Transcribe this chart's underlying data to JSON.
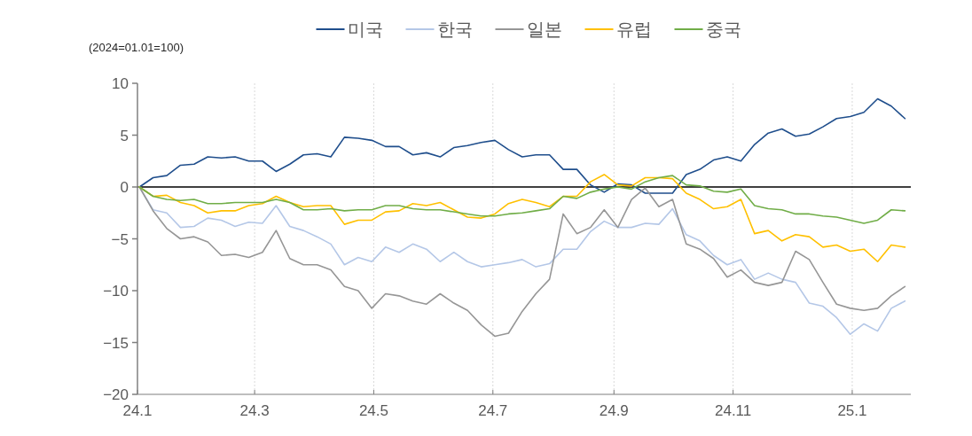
{
  "chart_data": {
    "type": "line",
    "ylabel": "(2024=01.01=100)",
    "x": [
      "2024-01-02",
      "2024-01-09",
      "2024-01-16",
      "2024-01-23",
      "2024-01-30",
      "2024-02-06",
      "2024-02-13",
      "2024-02-20",
      "2024-02-27",
      "2024-03-05",
      "2024-03-12",
      "2024-03-19",
      "2024-03-26",
      "2024-04-02",
      "2024-04-09",
      "2024-04-16",
      "2024-04-23",
      "2024-04-30",
      "2024-05-07",
      "2024-05-14",
      "2024-05-21",
      "2024-05-28",
      "2024-06-04",
      "2024-06-11",
      "2024-06-18",
      "2024-06-25",
      "2024-07-02",
      "2024-07-09",
      "2024-07-16",
      "2024-07-23",
      "2024-07-30",
      "2024-08-06",
      "2024-08-13",
      "2024-08-20",
      "2024-08-27",
      "2024-09-03",
      "2024-09-10",
      "2024-09-17",
      "2024-09-24",
      "2024-10-01",
      "2024-10-08",
      "2024-10-15",
      "2024-10-22",
      "2024-10-29",
      "2024-11-05",
      "2024-11-12",
      "2024-11-19",
      "2024-11-26",
      "2024-12-03",
      "2024-12-10",
      "2024-12-17",
      "2024-12-24",
      "2024-12-31",
      "2025-01-07",
      "2025-01-14",
      "2025-01-21",
      "2025-01-28"
    ],
    "series": [
      {
        "name": "미국",
        "color": "#1f4e8c",
        "values": [
          0,
          0.9,
          1.1,
          2.1,
          2.2,
          2.9,
          2.8,
          2.9,
          2.5,
          2.5,
          1.5,
          2.2,
          3.1,
          3.2,
          2.9,
          4.8,
          4.7,
          4.5,
          3.9,
          3.9,
          3.1,
          3.3,
          2.9,
          3.8,
          4.0,
          4.3,
          4.5,
          3.6,
          2.9,
          3.1,
          3.1,
          1.7,
          1.7,
          0.2,
          -0.5,
          0.3,
          0.2,
          -0.6,
          -0.6,
          -0.6,
          1.2,
          1.7,
          2.6,
          2.9,
          2.5,
          4.1,
          5.2,
          5.6,
          4.9,
          5.1,
          5.8,
          6.6,
          6.8,
          7.2,
          8.5,
          7.8,
          6.6
        ]
      },
      {
        "name": "한국",
        "color": "#b4c7e7",
        "values": [
          0,
          -2.2,
          -2.5,
          -3.9,
          -3.8,
          -3.0,
          -3.2,
          -3.8,
          -3.4,
          -3.5,
          -1.8,
          -3.8,
          -4.2,
          -4.8,
          -5.5,
          -7.5,
          -6.8,
          -7.2,
          -5.8,
          -6.3,
          -5.5,
          -6.0,
          -7.2,
          -6.3,
          -7.2,
          -7.7,
          -7.5,
          -7.3,
          -7.0,
          -7.7,
          -7.4,
          -6.0,
          -6.0,
          -4.3,
          -3.3,
          -3.9,
          -3.9,
          -3.5,
          -3.6,
          -2.1,
          -4.6,
          -5.2,
          -6.6,
          -7.5,
          -7.0,
          -8.9,
          -8.3,
          -8.9,
          -9.2,
          -11.2,
          -11.5,
          -12.6,
          -14.2,
          -13.2,
          -13.9,
          -11.7,
          -11.0
        ]
      },
      {
        "name": "일본",
        "color": "#969696",
        "values": [
          0,
          -2.3,
          -4.0,
          -5.0,
          -4.8,
          -5.3,
          -6.6,
          -6.5,
          -6.8,
          -6.3,
          -4.2,
          -6.9,
          -7.5,
          -7.5,
          -8.0,
          -9.6,
          -10.0,
          -11.7,
          -10.3,
          -10.5,
          -11.0,
          -11.3,
          -10.3,
          -11.2,
          -11.9,
          -13.3,
          -14.4,
          -14.1,
          -12.0,
          -10.3,
          -8.9,
          -2.6,
          -4.5,
          -3.9,
          -2.2,
          -3.9,
          -1.2,
          -0.1,
          -1.9,
          -1.2,
          -5.5,
          -6.0,
          -6.9,
          -8.7,
          -8.0,
          -9.2,
          -9.5,
          -9.2,
          -6.2,
          -7.0,
          -9.2,
          -11.3,
          -11.7,
          -11.9,
          -11.7,
          -10.5,
          -9.6
        ]
      },
      {
        "name": "유럽",
        "color": "#ffc000",
        "values": [
          0,
          -0.9,
          -0.8,
          -1.5,
          -1.8,
          -2.5,
          -2.3,
          -2.3,
          -1.8,
          -1.6,
          -0.9,
          -1.5,
          -1.9,
          -1.8,
          -1.8,
          -3.6,
          -3.2,
          -3.2,
          -2.4,
          -2.3,
          -1.6,
          -1.8,
          -1.5,
          -2.2,
          -2.9,
          -3.0,
          -2.6,
          -1.6,
          -1.2,
          -1.5,
          -1.9,
          -0.9,
          -0.9,
          0.5,
          1.2,
          0.2,
          0.1,
          0.9,
          0.9,
          0.8,
          -0.6,
          -1.2,
          -2.1,
          -1.9,
          -1.2,
          -4.5,
          -4.2,
          -5.2,
          -4.6,
          -4.8,
          -5.8,
          -5.6,
          -6.2,
          -6.0,
          -7.2,
          -5.6,
          -5.8
        ]
      },
      {
        "name": "중국",
        "color": "#70ad47",
        "values": [
          0,
          -0.9,
          -1.2,
          -1.3,
          -1.2,
          -1.6,
          -1.6,
          -1.5,
          -1.5,
          -1.5,
          -1.2,
          -1.5,
          -2.2,
          -2.2,
          -2.1,
          -2.3,
          -2.2,
          -2.2,
          -1.8,
          -1.8,
          -2.1,
          -2.2,
          -2.2,
          -2.4,
          -2.6,
          -2.8,
          -2.8,
          -2.6,
          -2.5,
          -2.3,
          -2.1,
          -0.9,
          -1.1,
          -0.5,
          -0.2,
          0.0,
          -0.2,
          0.5,
          0.9,
          1.1,
          0.2,
          0.1,
          -0.4,
          -0.5,
          -0.2,
          -1.8,
          -2.1,
          -2.2,
          -2.6,
          -2.6,
          -2.8,
          -2.9,
          -3.2,
          -3.5,
          -3.2,
          -2.2,
          -2.3
        ]
      }
    ],
    "xlim": [
      "2024-01-01",
      "2025-01-31"
    ],
    "xticks": [
      {
        "value": "2024-01-01",
        "label": "24.1"
      },
      {
        "value": "2024-03-01",
        "label": "24.3"
      },
      {
        "value": "2024-05-01",
        "label": "24.5"
      },
      {
        "value": "2024-07-01",
        "label": "24.7"
      },
      {
        "value": "2024-09-01",
        "label": "24.9"
      },
      {
        "value": "2024-11-01",
        "label": "24.11"
      },
      {
        "value": "2025-01-01",
        "label": "25.1"
      }
    ],
    "ylim": [
      -20,
      10
    ],
    "yticks": [
      -20,
      -15,
      -10,
      -5,
      0,
      5,
      10
    ],
    "ref_lines": [
      {
        "axis": "y",
        "value": 0,
        "color": "#000000"
      }
    ],
    "grid": "x",
    "legend": "top",
    "line_style": "solid",
    "marker": "none"
  }
}
